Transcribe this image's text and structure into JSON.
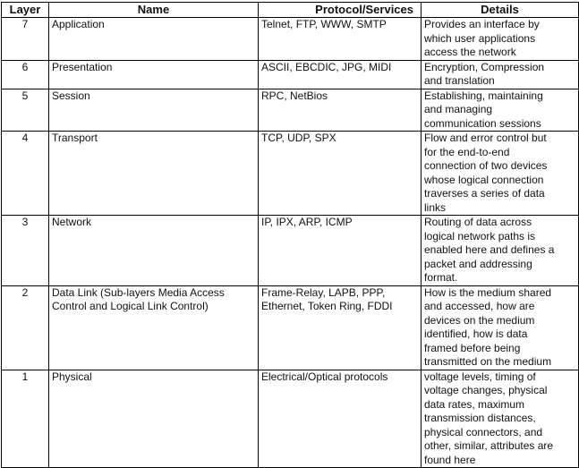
{
  "headers": [
    "Layer",
    "Name",
    "Protocol/Services",
    "Details"
  ],
  "rows": [
    {
      "layer": "7",
      "name": "Application",
      "protocols": "Telnet, FTP, WWW, SMTP",
      "details": "Provides an interface by\nwhich user applications\naccess the network"
    },
    {
      "layer": "6",
      "name": "Presentation",
      "protocols": "ASCII, EBCDIC, JPG, MIDI",
      "details": "Encryption, Compression\nand translation"
    },
    {
      "layer": "5",
      "name": "Session",
      "protocols": "RPC, NetBios",
      "details": "Establishing, maintaining\nand managing\ncommunication sessions"
    },
    {
      "layer": "4",
      "name": "Transport",
      "protocols": "TCP, UDP, SPX",
      "details": "Flow and error control but\nfor the end-to-end\nconnection of two devices\nwhose logical connection\ntraverses a series of data\nlinks"
    },
    {
      "layer": "3",
      "name": "Network",
      "protocols": "IP, IPX, ARP, ICMP",
      "details": "Routing of data across\nlogical network paths is\nenabled here and defines a\npacket and addressing\nformat."
    },
    {
      "layer": "2",
      "name": "Data Link (Sub-layers Media Access\nControl and Logical Link Control)",
      "protocols": "Frame-Relay, LAPB, PPP,\nEthernet, Token Ring, FDDI",
      "details": "How is the medium shared\nand accessed, how are\ndevices on the medium\nidentified, how is data\nframed before being\ntransmitted on the medium"
    },
    {
      "layer": "1",
      "name": "Physical",
      "protocols": "Electrical/Optical protocols",
      "details": "voltage levels, timing of\nvoltage changes, physical\ndata rates, maximum\ntransmission distances,\nphysical connectors, and\nother, similar, attributes are\nfound here"
    }
  ]
}
